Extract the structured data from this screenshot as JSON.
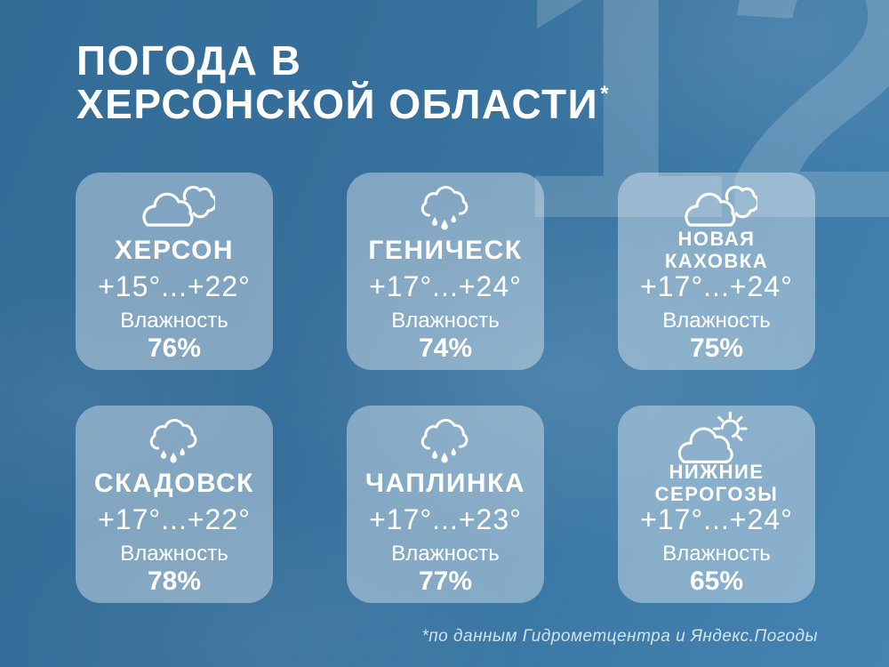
{
  "title": {
    "line1": "ПОГОДА В",
    "line2": "ХЕРСОНСКОЙ ОБЛАСТИ",
    "asterisk": "*"
  },
  "watermark": "12",
  "colors": {
    "background": "#35719c",
    "background_light": "#4a8abb",
    "card": "#93bad6",
    "text": "#ffffff",
    "watermark": "#6ba0c4"
  },
  "cards": [
    {
      "city": "ХЕРСОН",
      "icon": "clouds",
      "temperature": "+15°...+22°",
      "humidity_label": "Влажность",
      "humidity_value": "76%"
    },
    {
      "city": "ГЕНИЧЕСК",
      "icon": "rain-cloud",
      "temperature": "+17°...+24°",
      "humidity_label": "Влажность",
      "humidity_value": "74%"
    },
    {
      "city": "НОВАЯ КАХОВКА",
      "icon": "clouds",
      "temperature": "+17°...+24°",
      "humidity_label": "Влажность",
      "humidity_value": "75%"
    },
    {
      "city": "СКАДОВСК",
      "icon": "rain-cloud",
      "temperature": "+17°...+22°",
      "humidity_label": "Влажность",
      "humidity_value": "78%"
    },
    {
      "city": "ЧАПЛИНКА",
      "icon": "rain-cloud",
      "temperature": "+17°...+23°",
      "humidity_label": "Влажность",
      "humidity_value": "77%"
    },
    {
      "city": "НИЖНИЕ СЕРОГОЗЫ",
      "icon": "cloud-sun",
      "temperature": "+17°...+24°",
      "humidity_label": "Влажность",
      "humidity_value": "65%"
    }
  ],
  "footer": {
    "note": "*по данным Гидрометцентра и Яндекс.Погоды"
  }
}
